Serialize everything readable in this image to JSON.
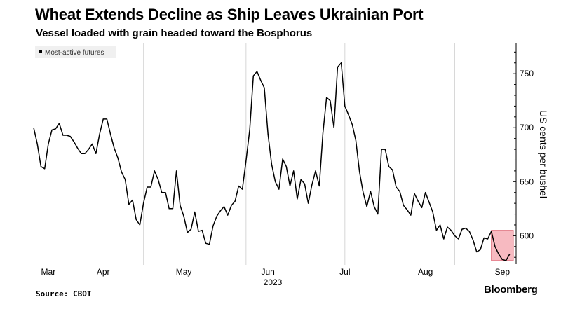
{
  "title": "Wheat Extends Decline as Ship Leaves Ukrainian Port",
  "subtitle": "Vessel loaded with grain headed toward the Bosphorus",
  "source": "Source: CBOT",
  "brand": "Bloomberg",
  "chart_data": {
    "type": "line",
    "legend": "Most-active futures",
    "legend_position": "top-left",
    "ylabel": "US cents per bushel",
    "xlabel": "2023",
    "ylim": [
      573,
      778
    ],
    "yticks": [
      600,
      650,
      700,
      750
    ],
    "xlim": [
      0,
      131
    ],
    "grid": "vertical",
    "month_labels": [
      {
        "label": "Mar",
        "x": 4
      },
      {
        "label": "Apr",
        "x": 19
      },
      {
        "label": "May",
        "x": 41
      },
      {
        "label": "Jun",
        "x": 64
      },
      {
        "label": "Jul",
        "x": 85
      },
      {
        "label": "Aug",
        "x": 107
      },
      {
        "label": "Sep",
        "x": 128
      }
    ],
    "gridlines_x": [
      30,
      58,
      85,
      115
    ],
    "series": [
      {
        "name": "Most-active futures",
        "x": [
          0,
          1,
          2,
          3,
          4,
          5,
          6,
          7,
          8,
          9,
          10,
          11,
          12,
          13,
          14,
          15,
          16,
          17,
          18,
          19,
          20,
          21,
          22,
          23,
          24,
          25,
          26,
          27,
          28,
          29,
          30,
          31,
          32,
          33,
          34,
          35,
          36,
          37,
          38,
          39,
          40,
          41,
          42,
          43,
          44,
          45,
          46,
          47,
          48,
          49,
          50,
          51,
          52,
          53,
          54,
          55,
          56,
          57,
          58,
          59,
          60,
          61,
          62,
          63,
          64,
          65,
          66,
          67,
          68,
          69,
          70,
          71,
          72,
          73,
          74,
          75,
          76,
          77,
          78,
          79,
          80,
          81,
          82,
          83,
          84,
          85,
          86,
          87,
          88,
          89,
          90,
          91,
          92,
          93,
          94,
          95,
          96,
          97,
          98,
          99,
          100,
          101,
          102,
          103,
          104,
          105,
          106,
          107,
          108,
          109,
          110,
          111,
          112,
          113,
          114,
          115,
          116,
          117,
          118,
          119,
          120,
          121,
          122,
          123,
          124,
          125,
          126,
          127,
          128,
          129,
          130
        ],
        "values": [
          700,
          685,
          664,
          662,
          685,
          698,
          699,
          704,
          693,
          693,
          692,
          687,
          681,
          676,
          676,
          680,
          685,
          676,
          694,
          708,
          708,
          694,
          681,
          672,
          659,
          652,
          629,
          633,
          615,
          610,
          630,
          645,
          645,
          660,
          652,
          640,
          640,
          625,
          625,
          660,
          628,
          618,
          603,
          606,
          622,
          604,
          605,
          593,
          592,
          609,
          618,
          623,
          627,
          619,
          628,
          632,
          646,
          643,
          669,
          698,
          748,
          752,
          744,
          737,
          694,
          666,
          650,
          643,
          671,
          664,
          646,
          660,
          634,
          652,
          648,
          630,
          647,
          660,
          646,
          695,
          728,
          725,
          700,
          756,
          760,
          720,
          712,
          703,
          688,
          659,
          640,
          627,
          641,
          627,
          620,
          680,
          680,
          664,
          661,
          645,
          641,
          628,
          624,
          619,
          639,
          632,
          626,
          640,
          631,
          622,
          605,
          610,
          597,
          608,
          605,
          600,
          597,
          606,
          607,
          604,
          596,
          585,
          587,
          598,
          597,
          604,
          590,
          583,
          578,
          577,
          583
        ]
      }
    ],
    "highlight": {
      "x_start": 125,
      "x_end": 131,
      "y_start": 577,
      "y_end": 605,
      "color": "#f28d98"
    },
    "colors": {
      "line": "#000000",
      "grid": "#d6d6d6",
      "highlight_fill": "#f4a3ac",
      "highlight_stroke": "#e0707d"
    }
  }
}
